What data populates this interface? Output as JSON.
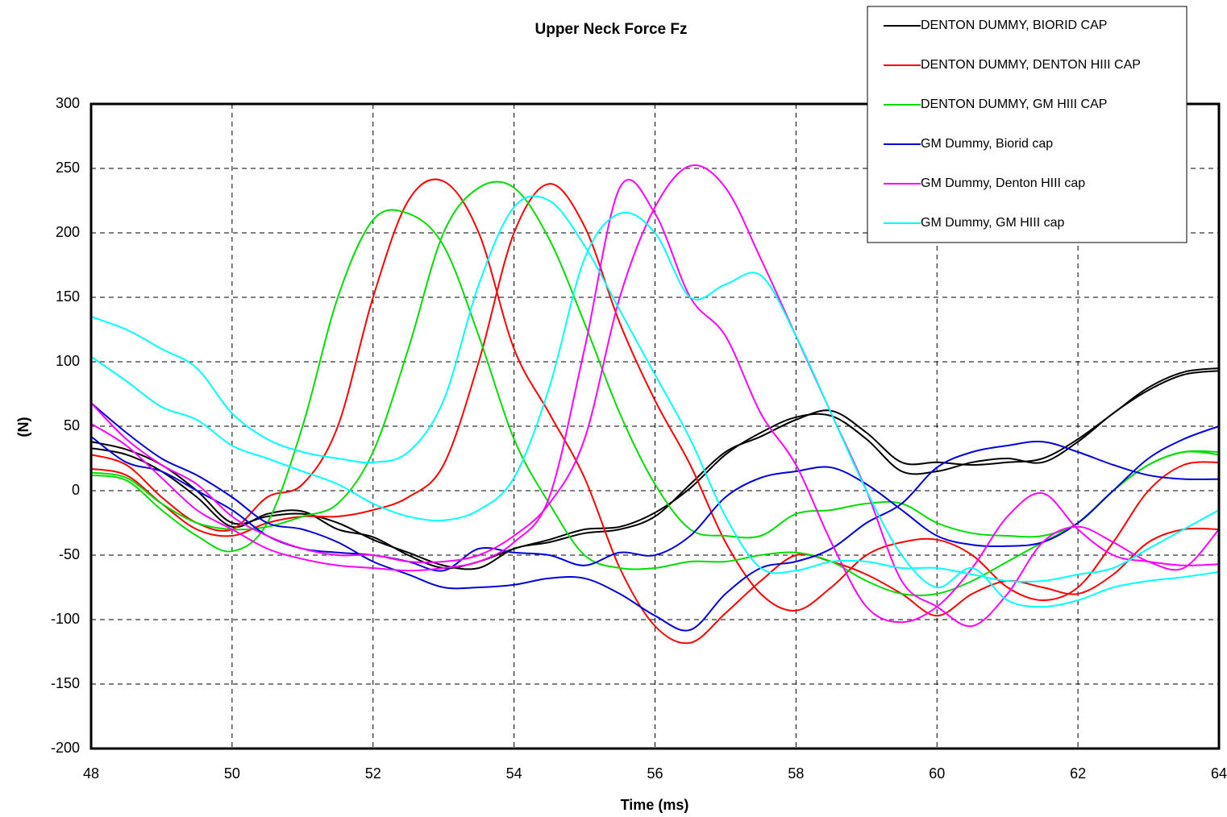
{
  "chart_data": {
    "type": "line",
    "title": "Upper Neck Force Fz",
    "x_label": "Time (ms)",
    "y_label": "(N)",
    "x": [
      48,
      48.5,
      49,
      49.5,
      50,
      50.5,
      51,
      51.5,
      52,
      52.5,
      53,
      53.5,
      54,
      54.5,
      55,
      55.5,
      56,
      56.5,
      57,
      57.5,
      58,
      58.5,
      59,
      59.5,
      60,
      60.5,
      61,
      61.5,
      62,
      62.5,
      63,
      63.5,
      64
    ],
    "xlim": [
      48,
      64
    ],
    "xticks": [
      48,
      50,
      52,
      54,
      56,
      58,
      60,
      62,
      64
    ],
    "ylim": [
      -200,
      300
    ],
    "yticks": [
      -200,
      -150,
      -100,
      -50,
      0,
      50,
      100,
      150,
      200,
      250,
      300
    ],
    "grid": true,
    "legend": "top-right",
    "series": [
      {
        "name": "DENTON DUMMY, BIORID CAP",
        "color": "#000000",
        "traces": [
          [
            38,
            32,
            20,
            0,
            -25,
            -20,
            -18,
            -25,
            -38,
            -48,
            -58,
            -60,
            -45,
            -40,
            -33,
            -30,
            -20,
            5,
            30,
            42,
            55,
            62,
            45,
            22,
            22,
            20,
            22,
            25,
            40,
            60,
            80,
            92,
            95
          ],
          [
            33,
            28,
            15,
            -5,
            -28,
            -18,
            -16,
            -30,
            -36,
            -50,
            -60,
            -55,
            -45,
            -38,
            -30,
            -28,
            -17,
            2,
            28,
            45,
            57,
            58,
            40,
            15,
            15,
            22,
            25,
            22,
            38,
            60,
            78,
            90,
            93
          ]
        ]
      },
      {
        "name": "DENTON DUMMY, DENTON HIII CAP",
        "color": "#ff0000",
        "traces": [
          [
            28,
            20,
            -5,
            -25,
            -30,
            -5,
            5,
            50,
            150,
            225,
            240,
            200,
            110,
            60,
            10,
            -60,
            -105,
            -118,
            -95,
            -70,
            -50,
            -55,
            -65,
            -80,
            -97,
            -80,
            -70,
            -75,
            -80,
            -65,
            -40,
            -30,
            -30
          ],
          [
            17,
            12,
            -10,
            -30,
            -35,
            -25,
            -20,
            -20,
            -15,
            -5,
            20,
            100,
            200,
            238,
            205,
            130,
            70,
            20,
            -40,
            -80,
            -93,
            -75,
            -50,
            -40,
            -38,
            -50,
            -75,
            -85,
            -75,
            -40,
            0,
            20,
            22
          ]
        ]
      },
      {
        "name": "DENTON DUMMY, GM HIII CAP",
        "color": "#00dd00",
        "traces": [
          [
            12,
            8,
            -15,
            -35,
            -47,
            -25,
            50,
            150,
            210,
            215,
            190,
            120,
            40,
            -10,
            -50,
            -60,
            -60,
            -55,
            -55,
            -50,
            -48,
            -55,
            -70,
            -80,
            -80,
            -70,
            -55,
            -40,
            -25,
            0,
            20,
            30,
            30
          ],
          [
            14,
            10,
            -10,
            -25,
            -30,
            -28,
            -20,
            -10,
            30,
            110,
            200,
            235,
            235,
            195,
            130,
            60,
            5,
            -30,
            -35,
            -35,
            -18,
            -15,
            -10,
            -10,
            -25,
            -33,
            -35,
            -35,
            -25,
            0,
            20,
            30,
            28
          ]
        ]
      },
      {
        "name": "GM Dummy, Biorid cap",
        "color": "#0000dd",
        "traces": [
          [
            42,
            22,
            15,
            0,
            -15,
            -35,
            -45,
            -48,
            -50,
            -55,
            -62,
            -45,
            -48,
            -50,
            -58,
            -48,
            -50,
            -35,
            -5,
            10,
            15,
            18,
            5,
            -15,
            -35,
            -42,
            -43,
            -40,
            -25,
            0,
            25,
            40,
            50
          ],
          [
            68,
            45,
            25,
            12,
            -5,
            -25,
            -30,
            -40,
            -55,
            -65,
            -75,
            -75,
            -73,
            -68,
            -68,
            -80,
            -97,
            -108,
            -80,
            -60,
            -55,
            -45,
            -25,
            -10,
            18,
            30,
            35,
            38,
            30,
            20,
            12,
            9,
            9
          ]
        ]
      },
      {
        "name": "GM Dummy, Denton HIII cap",
        "color": "#ff00ff",
        "traces": [
          [
            52,
            35,
            10,
            -15,
            -30,
            -45,
            -53,
            -58,
            -60,
            -62,
            -60,
            -55,
            -40,
            -5,
            110,
            235,
            215,
            150,
            120,
            60,
            20,
            -40,
            -90,
            -102,
            -90,
            -60,
            -20,
            -2,
            -30,
            -50,
            -55,
            -58,
            -57
          ],
          [
            68,
            40,
            20,
            5,
            -20,
            -35,
            -45,
            -50,
            -50,
            -55,
            -55,
            -50,
            -35,
            -10,
            40,
            150,
            220,
            252,
            235,
            180,
            120,
            60,
            0,
            -70,
            -90,
            -105,
            -80,
            -40,
            -28,
            -40,
            -55,
            -60,
            -30
          ]
        ]
      },
      {
        "name": "GM Dummy, GM HIII cap",
        "color": "#00ffff",
        "traces": [
          [
            135,
            125,
            110,
            95,
            60,
            40,
            30,
            25,
            22,
            30,
            70,
            160,
            220,
            225,
            190,
            140,
            90,
            40,
            -20,
            -60,
            -62,
            -55,
            -55,
            -60,
            -60,
            -65,
            -70,
            -70,
            -65,
            -60,
            -45,
            -30,
            -15
          ],
          [
            104,
            85,
            65,
            55,
            35,
            25,
            15,
            5,
            -10,
            -20,
            -23,
            -15,
            10,
            80,
            180,
            215,
            200,
            150,
            160,
            167,
            120,
            60,
            0,
            -50,
            -75,
            -60,
            -85,
            -90,
            -85,
            -75,
            -70,
            -67,
            -63
          ]
        ]
      }
    ]
  }
}
